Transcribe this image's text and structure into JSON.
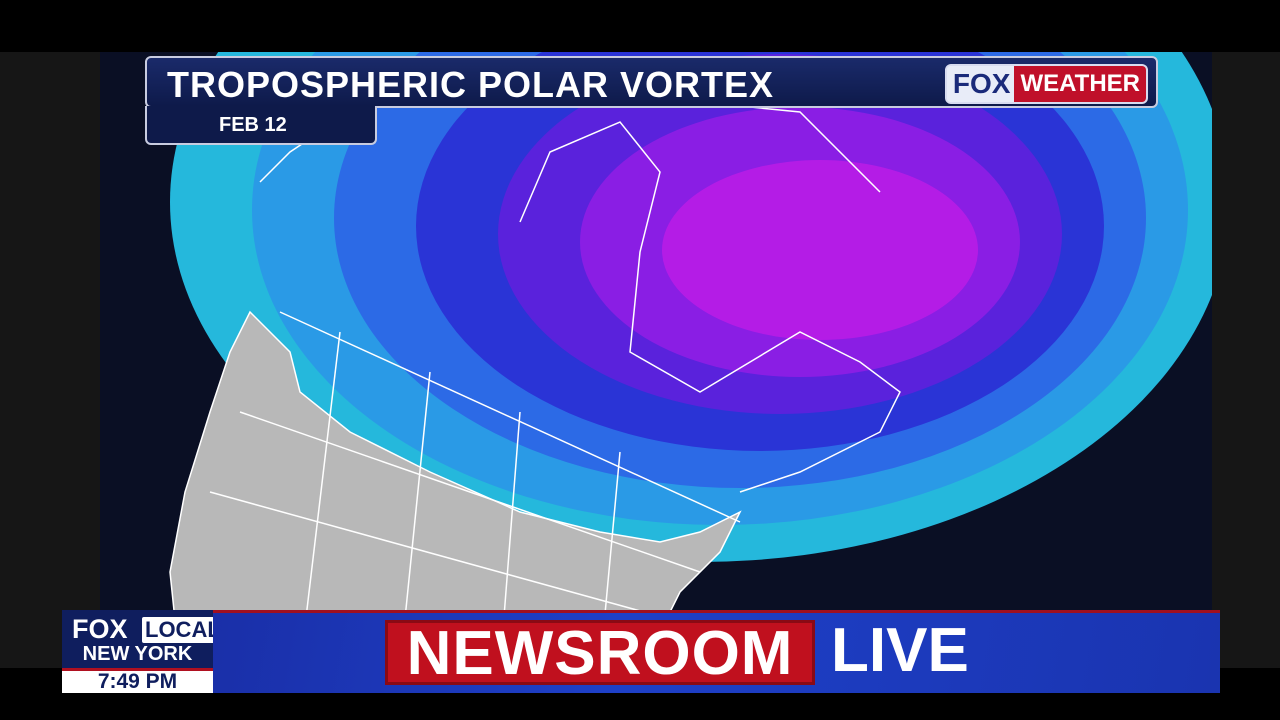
{
  "graphic": {
    "title": "TROPOSPHERIC POLAR VORTEX",
    "date": "FEB 12",
    "logo": {
      "part1": "FOX",
      "part2": "WEATHER"
    }
  },
  "lower_third": {
    "station_logo": {
      "part1": "FOX",
      "part2": "LOCAL"
    },
    "city": "NEW YORK",
    "time": "7:49 PM",
    "program": "NEWSROOM",
    "program_suffix": "LIVE"
  },
  "map": {
    "colors": [
      "#25b8dc",
      "#2a9ae6",
      "#2c6ae6",
      "#2a34d6",
      "#5a22dc",
      "#8a1ee4",
      "#b41ce6"
    ],
    "land_color": "#b8b8b8",
    "brand_red": "#c0101e",
    "brand_navy": "#0f1e5e"
  }
}
